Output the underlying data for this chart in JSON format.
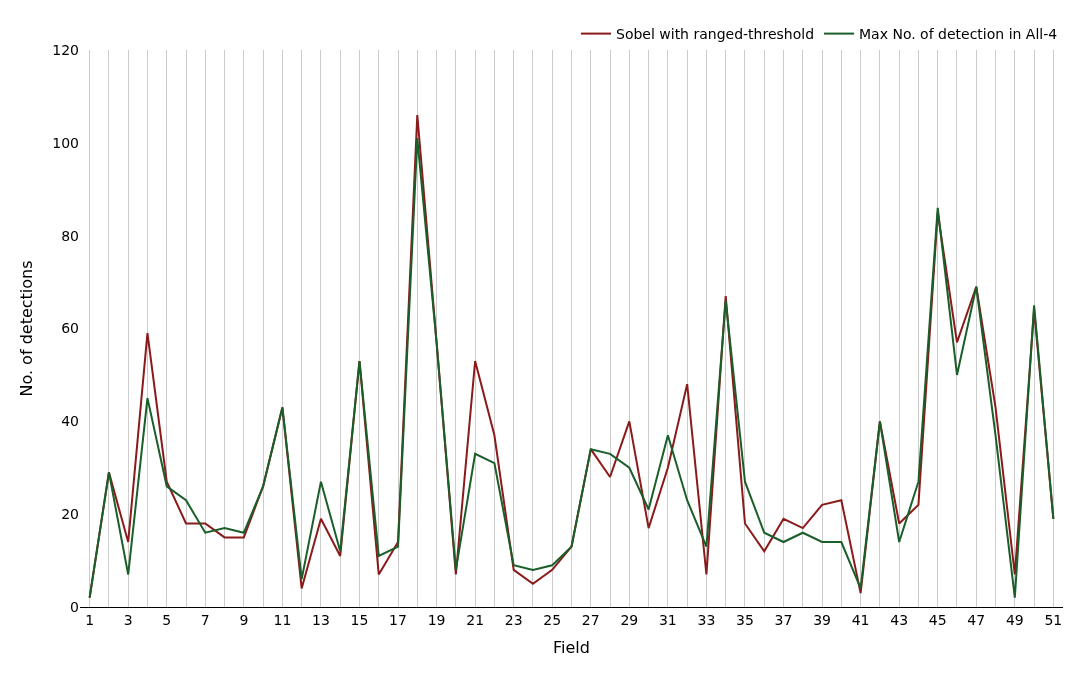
{
  "chart_data": {
    "type": "line",
    "xlabel": "Field",
    "ylabel": "No. of detections",
    "x": [
      1,
      2,
      3,
      4,
      5,
      6,
      7,
      8,
      9,
      10,
      11,
      12,
      13,
      14,
      15,
      16,
      17,
      18,
      19,
      20,
      21,
      22,
      23,
      24,
      25,
      26,
      27,
      28,
      29,
      30,
      31,
      32,
      33,
      34,
      35,
      36,
      37,
      38,
      39,
      40,
      41,
      42,
      43,
      44,
      45,
      46,
      47,
      48,
      49,
      50,
      51
    ],
    "series": [
      {
        "name": "Sobel with ranged-threshold",
        "color": "#8b1a1a",
        "values": [
          2,
          29,
          14,
          59,
          27,
          18,
          18,
          15,
          15,
          26,
          43,
          4,
          19,
          11,
          53,
          7,
          14,
          106,
          57,
          7,
          53,
          37,
          8,
          5,
          8,
          13,
          34,
          28,
          40,
          17,
          30,
          48,
          7,
          67,
          18,
          12,
          19,
          17,
          22,
          23,
          3,
          40,
          18,
          22,
          85,
          57,
          69,
          43,
          7,
          64,
          19
        ]
      },
      {
        "name": "Max No. of detection in All-4",
        "color": "#1a5e2a",
        "values": [
          2,
          29,
          7,
          45,
          26,
          23,
          16,
          17,
          16,
          26,
          43,
          6,
          27,
          12,
          53,
          11,
          13,
          101,
          57,
          8,
          33,
          31,
          9,
          8,
          9,
          13,
          34,
          33,
          30,
          21,
          37,
          23,
          13,
          66,
          27,
          16,
          14,
          16,
          14,
          14,
          4,
          40,
          14,
          27,
          86,
          50,
          69,
          37,
          2,
          65,
          19
        ]
      }
    ],
    "xlim": [
      0.5,
      51.5
    ],
    "xticks": [
      1,
      {
        "value": 2,
        "label": null
      },
      3,
      {
        "value": 4,
        "label": null
      },
      5,
      {
        "value": 6,
        "label": null
      },
      7,
      {
        "value": 8,
        "label": null
      },
      9,
      {
        "value": 10,
        "label": null
      },
      11,
      {
        "value": 12,
        "label": null
      },
      13,
      {
        "value": 14,
        "label": null
      },
      15,
      {
        "value": 16,
        "label": null
      },
      17,
      {
        "value": 18,
        "label": null
      },
      19,
      {
        "value": 20,
        "label": null
      },
      21,
      {
        "value": 22,
        "label": null
      },
      23,
      {
        "value": 24,
        "label": null
      },
      25,
      {
        "value": 26,
        "label": null
      },
      27,
      {
        "value": 28,
        "label": null
      },
      29,
      {
        "value": 30,
        "label": null
      },
      31,
      {
        "value": 32,
        "label": null
      },
      33,
      {
        "value": 34,
        "label": null
      },
      35,
      {
        "value": 36,
        "label": null
      },
      37,
      {
        "value": 38,
        "label": null
      },
      39,
      {
        "value": 40,
        "label": null
      },
      41,
      {
        "value": 42,
        "label": null
      },
      43,
      {
        "value": 44,
        "label": null
      },
      45,
      {
        "value": 46,
        "label": null
      },
      47,
      {
        "value": 48,
        "label": null
      },
      49,
      {
        "value": 50,
        "label": null
      },
      51
    ],
    "ylim": [
      0,
      120
    ],
    "yticks": [
      0,
      20,
      40,
      60,
      80,
      100,
      120
    ],
    "grid": "x",
    "legend": "top right",
    "marker": "none",
    "line_style": "solid"
  }
}
